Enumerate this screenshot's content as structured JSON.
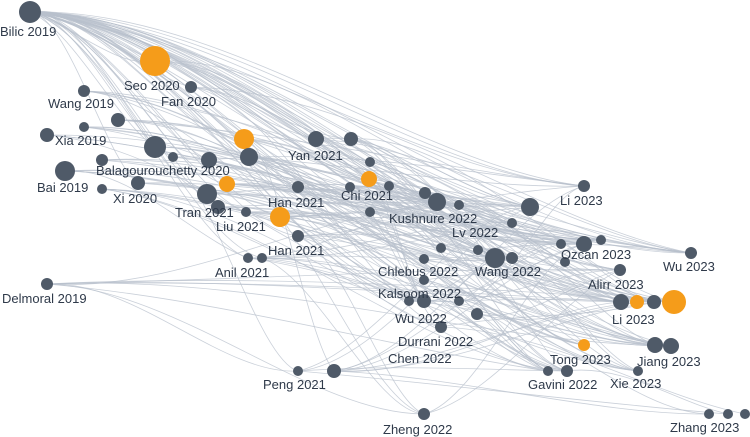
{
  "colors": {
    "background": "#ffffff",
    "node_default": "#4f5a68",
    "node_highlight": "#f59c1a",
    "edge": "#b8c0cc",
    "label": "#2f3a4a"
  },
  "chart_data": {
    "type": "citation-network",
    "labels": [
      "Bilic 2019",
      "Seo 2020",
      "Fan 2020",
      "Wang 2019",
      "Xia 2019",
      "Balagourouchetty 2020",
      "Bai 2019",
      "Xi 2020",
      "Yan 2021",
      "Tran 2021",
      "Liu 2021",
      "Han 2021",
      "Chi 2021",
      "Kushnure 2022",
      "Lv 2022",
      "Han 2021",
      "Anil 2021",
      "Chlebus 2022",
      "Wang 2022",
      "Kalsoom 2022",
      "Wu 2022",
      "Durrani 2022",
      "Chen 2022",
      "Li 2023",
      "Ozcan 2023",
      "Alirr 2023",
      "Li 2023",
      "Wu 2023",
      "Tong 2023",
      "Jiang 2023",
      "Gavini 2022",
      "Xie 2023",
      "Delmoral 2019",
      "Peng 2021",
      "Zheng 2022",
      "Zhang 2023"
    ],
    "highlighted_label": "orange nodes",
    "node_count": 72
  }
}
